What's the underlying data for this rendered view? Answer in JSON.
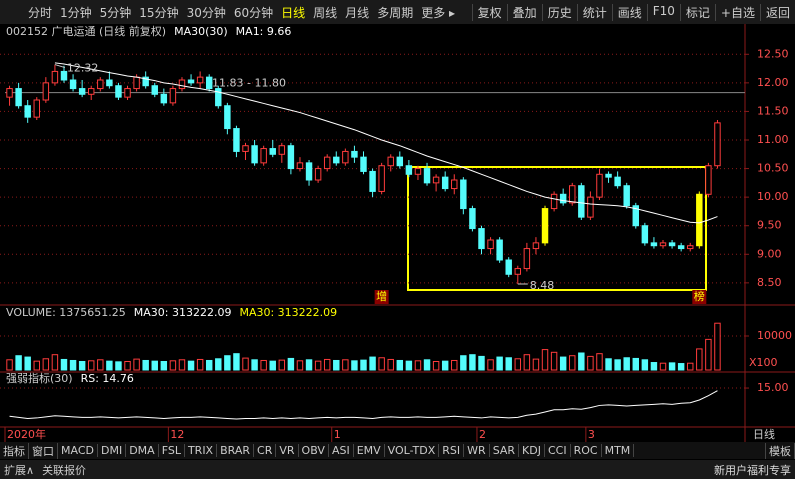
{
  "toolbar": {
    "left": [
      "分时",
      "1分钟",
      "5分钟",
      "15分钟",
      "30分钟",
      "60分钟",
      "日线",
      "周线",
      "月线",
      "多周期",
      "更多 ▸"
    ],
    "right": [
      "复权",
      "叠加",
      "历史",
      "统计",
      "画线",
      "F10",
      "标记",
      "+自选",
      "返回"
    ]
  },
  "chart_data": {
    "type": "candlestick",
    "header": [
      "002152 广电运通 (日线 前复权)",
      "MA30(30)",
      "MA1: 9.66"
    ],
    "up_color": "#ff3c3c",
    "down_color": "#54fcfc",
    "highlight_color": "#ffff00",
    "highlight": [
      59,
      76
    ],
    "ylim": [
      8.2,
      12.75
    ],
    "yticks": [
      {
        "value": 8.5,
        "label": "8.50"
      },
      {
        "value": 9,
        "label": "9.00"
      },
      {
        "value": 9.5,
        "label": "9.50"
      },
      {
        "value": 10,
        "label": "10.00"
      },
      {
        "value": 10.5,
        "label": "10.50"
      },
      {
        "value": 11,
        "label": "11.00"
      },
      {
        "value": 11.5,
        "label": "11.50"
      },
      {
        "value": 12,
        "label": "12.00"
      },
      {
        "value": 12.5,
        "label": "12.50"
      }
    ],
    "ohlc": [
      [
        11.75,
        11.95,
        11.6,
        11.9
      ],
      [
        11.9,
        12.0,
        11.55,
        11.6
      ],
      [
        11.6,
        11.7,
        11.3,
        11.4
      ],
      [
        11.4,
        11.75,
        11.35,
        11.7
      ],
      [
        11.7,
        12.1,
        11.65,
        12.0
      ],
      [
        12.0,
        12.32,
        11.95,
        12.2
      ],
      [
        12.2,
        12.3,
        12.0,
        12.05
      ],
      [
        12.05,
        12.15,
        11.85,
        11.9
      ],
      [
        11.9,
        12.05,
        11.75,
        11.8
      ],
      [
        11.8,
        11.95,
        11.7,
        11.9
      ],
      [
        11.9,
        12.1,
        11.85,
        12.05
      ],
      [
        12.05,
        12.2,
        11.9,
        11.95
      ],
      [
        11.95,
        12.0,
        11.7,
        11.75
      ],
      [
        11.75,
        11.95,
        11.7,
        11.9
      ],
      [
        11.9,
        12.15,
        11.85,
        12.1
      ],
      [
        12.1,
        12.2,
        11.9,
        11.95
      ],
      [
        11.95,
        12.0,
        11.75,
        11.8
      ],
      [
        11.8,
        11.9,
        11.6,
        11.65
      ],
      [
        11.65,
        11.95,
        11.6,
        11.9
      ],
      [
        11.9,
        12.1,
        11.85,
        12.05
      ],
      [
        12.05,
        12.15,
        11.95,
        12.0
      ],
      [
        12.0,
        12.2,
        11.9,
        12.1
      ],
      [
        12.1,
        12.15,
        11.85,
        11.9
      ],
      [
        11.9,
        11.95,
        11.55,
        11.6
      ],
      [
        11.6,
        11.65,
        11.1,
        11.2
      ],
      [
        11.2,
        11.25,
        10.7,
        10.8
      ],
      [
        10.8,
        10.95,
        10.65,
        10.9
      ],
      [
        10.9,
        11.0,
        10.55,
        10.6
      ],
      [
        10.6,
        10.9,
        10.55,
        10.85
      ],
      [
        10.85,
        11.0,
        10.7,
        10.75
      ],
      [
        10.75,
        10.95,
        10.6,
        10.9
      ],
      [
        10.9,
        10.95,
        10.4,
        10.5
      ],
      [
        10.5,
        10.7,
        10.45,
        10.6
      ],
      [
        10.6,
        10.65,
        10.2,
        10.3
      ],
      [
        10.3,
        10.55,
        10.25,
        10.5
      ],
      [
        10.5,
        10.75,
        10.45,
        10.7
      ],
      [
        10.7,
        10.8,
        10.55,
        10.6
      ],
      [
        10.6,
        10.85,
        10.55,
        10.8
      ],
      [
        10.8,
        10.9,
        10.6,
        10.7
      ],
      [
        10.7,
        10.8,
        10.4,
        10.45
      ],
      [
        10.45,
        10.5,
        10.0,
        10.1
      ],
      [
        10.1,
        10.6,
        10.05,
        10.55
      ],
      [
        10.55,
        10.75,
        10.45,
        10.7
      ],
      [
        10.7,
        10.8,
        10.5,
        10.55
      ],
      [
        10.55,
        10.65,
        10.35,
        10.4
      ],
      [
        10.4,
        10.55,
        10.3,
        10.5
      ],
      [
        10.5,
        10.6,
        10.2,
        10.25
      ],
      [
        10.25,
        10.4,
        10.1,
        10.35
      ],
      [
        10.35,
        10.45,
        10.1,
        10.15
      ],
      [
        10.15,
        10.4,
        10.05,
        10.3
      ],
      [
        10.3,
        10.35,
        9.7,
        9.8
      ],
      [
        9.8,
        9.85,
        9.4,
        9.45
      ],
      [
        9.45,
        9.5,
        9.0,
        9.1
      ],
      [
        9.1,
        9.3,
        9.0,
        9.25
      ],
      [
        9.25,
        9.3,
        8.85,
        8.9
      ],
      [
        8.9,
        8.95,
        8.6,
        8.65
      ],
      [
        8.65,
        8.8,
        8.48,
        8.75
      ],
      [
        8.75,
        9.2,
        8.7,
        9.1
      ],
      [
        9.1,
        9.3,
        9.0,
        9.2
      ],
      [
        9.2,
        9.85,
        9.15,
        9.8
      ],
      [
        9.8,
        10.1,
        9.75,
        10.05
      ],
      [
        10.05,
        10.15,
        9.85,
        9.9
      ],
      [
        9.9,
        10.25,
        9.85,
        10.2
      ],
      [
        10.2,
        10.25,
        9.6,
        9.65
      ],
      [
        9.65,
        10.1,
        9.6,
        10.0
      ],
      [
        10.0,
        10.5,
        9.95,
        10.4
      ],
      [
        10.4,
        10.45,
        10.25,
        10.35
      ],
      [
        10.35,
        10.45,
        10.15,
        10.2
      ],
      [
        10.2,
        10.25,
        9.8,
        9.85
      ],
      [
        9.85,
        9.9,
        9.45,
        9.5
      ],
      [
        9.5,
        9.55,
        9.15,
        9.2
      ],
      [
        9.2,
        9.3,
        9.1,
        9.15
      ],
      [
        9.15,
        9.25,
        9.1,
        9.2
      ],
      [
        9.2,
        9.25,
        9.1,
        9.15
      ],
      [
        9.15,
        9.2,
        9.05,
        9.1
      ],
      [
        9.1,
        9.2,
        9.05,
        9.15
      ],
      [
        9.15,
        10.1,
        9.1,
        10.05
      ],
      [
        10.05,
        10.6,
        10.0,
        10.55
      ],
      [
        10.55,
        11.35,
        10.5,
        11.3
      ]
    ],
    "ma30": {
      "color": "#ffffff",
      "values": [
        null,
        null,
        null,
        null,
        null,
        12.35,
        12.33,
        12.3,
        12.27,
        12.24,
        12.21,
        12.18,
        12.15,
        12.12,
        12.1,
        12.07,
        12.04,
        12.0,
        11.98,
        11.95,
        11.92,
        11.9,
        11.87,
        11.84,
        11.8,
        11.76,
        11.72,
        11.68,
        11.64,
        11.6,
        11.56,
        11.52,
        11.48,
        11.43,
        11.38,
        11.33,
        11.28,
        11.23,
        11.18,
        11.12,
        11.06,
        11.0,
        10.95,
        10.9,
        10.84,
        10.78,
        10.72,
        10.67,
        10.62,
        10.57,
        10.52,
        10.46,
        10.4,
        10.34,
        10.28,
        10.22,
        10.16,
        10.1,
        10.05,
        10.0,
        9.97,
        9.94,
        9.92,
        9.9,
        9.88,
        9.87,
        9.86,
        9.85,
        9.83,
        9.8,
        9.76,
        9.72,
        9.68,
        9.64,
        9.6,
        9.56,
        9.55,
        9.6,
        9.66
      ]
    },
    "annotations": [
      {
        "text": "12.32",
        "index": 5,
        "value": 12.32
      },
      {
        "text": "8.48",
        "index": 56,
        "value": 8.48
      }
    ],
    "hline": {
      "value": 11.83,
      "label": "11.83 - 11.80"
    },
    "markers": [
      {
        "text": "增",
        "index": 41
      },
      {
        "text": "榜",
        "index": 76
      }
    ],
    "x_labels": [
      {
        "index": 0,
        "label": "2020年"
      },
      {
        "index": 18,
        "label": "12"
      },
      {
        "index": 36,
        "label": "1"
      },
      {
        "index": 52,
        "label": "2"
      },
      {
        "index": 64,
        "label": "3"
      }
    ],
    "volume": {
      "header": [
        "VOLUME: 1375651.25",
        "MA30: 313222.09",
        "MA30: 313222.09"
      ],
      "ylim": [
        0,
        1470000
      ],
      "yticks": [
        {
          "value": 1000000,
          "label": "10000"
        }
      ],
      "unit": "X100",
      "values": [
        300000,
        420000,
        380000,
        260000,
        330000,
        450000,
        310000,
        280000,
        250000,
        270000,
        300000,
        260000,
        240000,
        250000,
        320000,
        280000,
        260000,
        250000,
        270000,
        300000,
        260000,
        310000,
        280000,
        330000,
        420000,
        480000,
        350000,
        300000,
        280000,
        260000,
        290000,
        340000,
        270000,
        300000,
        260000,
        310000,
        280000,
        300000,
        270000,
        290000,
        380000,
        360000,
        310000,
        280000,
        260000,
        270000,
        300000,
        250000,
        260000,
        280000,
        420000,
        450000,
        400000,
        300000,
        380000,
        360000,
        330000,
        450000,
        320000,
        600000,
        520000,
        380000,
        420000,
        500000,
        400000,
        480000,
        330000,
        300000,
        360000,
        340000,
        300000,
        220000,
        200000,
        210000,
        190000,
        200000,
        620000,
        900000,
        1375651.25
      ]
    },
    "rs": {
      "header": [
        "强弱指标(30)",
        "RS: 14.76"
      ],
      "color": "#ffffff",
      "ylim": [
        11.6,
        16.2
      ],
      "yticks": [
        {
          "value": 15,
          "label": "15.00"
        }
      ],
      "values": [
        12.4,
        12.3,
        12.2,
        12.25,
        12.35,
        12.45,
        12.4,
        12.35,
        12.3,
        12.3,
        12.35,
        12.3,
        12.25,
        12.3,
        12.35,
        12.3,
        12.25,
        12.2,
        12.25,
        12.3,
        12.3,
        12.35,
        12.3,
        12.25,
        12.2,
        12.15,
        12.2,
        12.2,
        12.25,
        12.2,
        12.25,
        12.2,
        12.25,
        12.2,
        12.25,
        12.3,
        12.25,
        12.3,
        12.3,
        12.25,
        12.2,
        12.3,
        12.35,
        12.3,
        12.3,
        12.35,
        12.3,
        12.3,
        12.35,
        12.4,
        12.35,
        12.3,
        12.25,
        12.35,
        12.3,
        12.25,
        12.3,
        12.5,
        12.6,
        12.8,
        13.0,
        13.0,
        13.1,
        13.05,
        13.2,
        13.4,
        13.45,
        13.4,
        13.35,
        13.4,
        13.45,
        13.5,
        13.55,
        13.5,
        13.6,
        13.65,
        13.9,
        14.3,
        14.76
      ]
    },
    "period_label": "日线"
  },
  "tabs": {
    "items": [
      "指标",
      "窗口",
      "MACD",
      "DMI",
      "DMA",
      "FSL",
      "TRIX",
      "BRAR",
      "CR",
      "VR",
      "OBV",
      "ASI",
      "EMV",
      "VOL-TDX",
      "RSI",
      "WR",
      "SAR",
      "KDJ",
      "CCI",
      "ROC",
      "MTM"
    ],
    "right": "模板"
  },
  "status": {
    "left": [
      "扩展∧",
      "关联报价"
    ],
    "right": "新用户福利专享"
  }
}
